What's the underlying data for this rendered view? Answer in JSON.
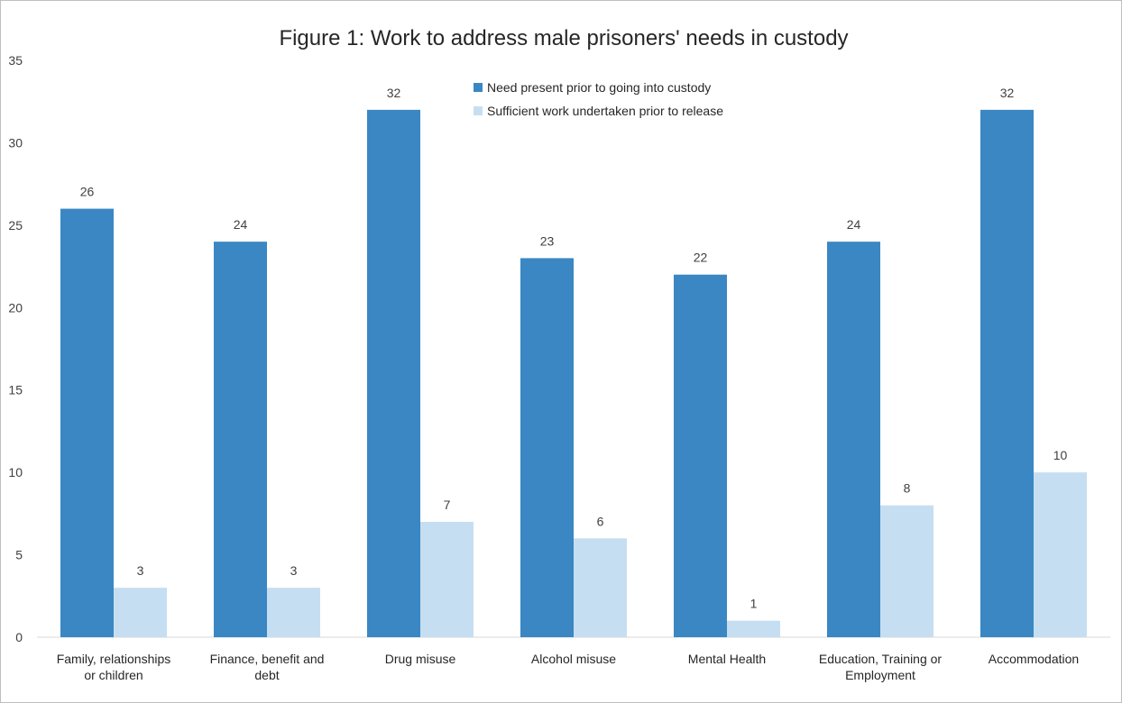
{
  "chart_data": {
    "type": "bar",
    "title": "Figure 1: Work to address male prisoners' needs in custody",
    "xlabel": "",
    "ylabel": "",
    "ylim": [
      0,
      35
    ],
    "yticks": [
      0,
      5,
      10,
      15,
      20,
      25,
      30,
      35
    ],
    "grid": false,
    "legend_position": "top-right",
    "categories": [
      [
        "Family, relationships",
        "or children"
      ],
      [
        "Finance, benefit and",
        "debt"
      ],
      [
        "Drug misuse"
      ],
      [
        "Alcohol misuse"
      ],
      [
        "Mental Health"
      ],
      [
        "Education, Training or",
        "Employment"
      ],
      [
        "Accommodation"
      ]
    ],
    "series": [
      {
        "name": "Need present prior to going into custody",
        "color": "#3a87c3",
        "values": [
          26,
          24,
          32,
          23,
          22,
          24,
          32
        ]
      },
      {
        "name": "Sufficient work undertaken prior to release",
        "color": "#c6def1",
        "values": [
          3,
          3,
          7,
          6,
          1,
          8,
          10
        ]
      }
    ]
  }
}
